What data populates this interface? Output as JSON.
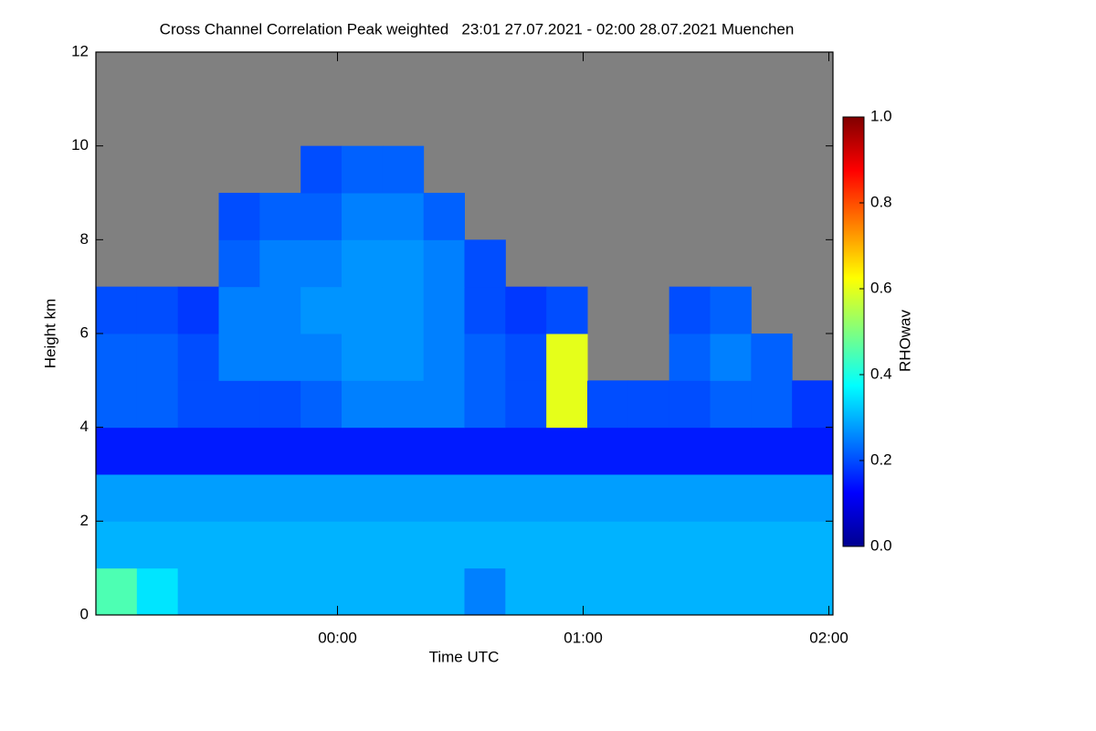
{
  "chart_data": {
    "type": "heatmap",
    "title": "Cross Channel Correlation Peak weighted   23:01 27.07.2021 - 02:00 28.07.2021 Muenchen",
    "xlabel": "Time UTC",
    "ylabel": "Height km",
    "colorbar_label": "RHOwav",
    "x": [
      "23:06",
      "23:16",
      "23:26",
      "23:36",
      "23:46",
      "23:56",
      "00:06",
      "00:16",
      "00:26",
      "00:36",
      "00:46",
      "00:56",
      "01:06",
      "01:16",
      "01:26",
      "01:36",
      "01:46",
      "01:56"
    ],
    "y": [
      0.5,
      1.5,
      2.5,
      3.5,
      4.5,
      5.5,
      6.5,
      7.5,
      8.5,
      9.5,
      10.5,
      11.5
    ],
    "z": [
      [
        0.45,
        0.35,
        0.3,
        0.3,
        0.3,
        0.3,
        0.3,
        0.3,
        0.3,
        0.25,
        0.3,
        0.3,
        0.3,
        0.3,
        0.3,
        0.3,
        0.3,
        0.3
      ],
      [
        0.3,
        0.3,
        0.3,
        0.3,
        0.3,
        0.3,
        0.3,
        0.3,
        0.3,
        0.3,
        0.3,
        0.3,
        0.3,
        0.3,
        0.3,
        0.3,
        0.3,
        0.3
      ],
      [
        0.28,
        0.28,
        0.28,
        0.28,
        0.28,
        0.28,
        0.28,
        0.28,
        0.28,
        0.28,
        0.28,
        0.28,
        0.28,
        0.28,
        0.28,
        0.28,
        0.28,
        0.28
      ],
      [
        0.15,
        0.15,
        0.15,
        0.15,
        0.15,
        0.15,
        0.15,
        0.15,
        0.15,
        0.15,
        0.15,
        0.15,
        0.15,
        0.15,
        0.15,
        0.15,
        0.15,
        0.15
      ],
      [
        0.22,
        0.22,
        0.2,
        0.2,
        0.2,
        0.22,
        0.25,
        0.25,
        0.25,
        0.22,
        0.2,
        0.6,
        0.2,
        0.2,
        0.2,
        0.22,
        0.22,
        0.18
      ],
      [
        0.22,
        0.22,
        0.2,
        0.25,
        0.25,
        0.25,
        0.27,
        0.27,
        0.25,
        0.22,
        0.2,
        0.6,
        null,
        null,
        0.22,
        0.25,
        0.22,
        null
      ],
      [
        0.2,
        0.2,
        0.18,
        0.25,
        0.25,
        0.27,
        0.27,
        0.27,
        0.25,
        0.2,
        0.18,
        0.2,
        null,
        null,
        0.2,
        0.22,
        null,
        null
      ],
      [
        null,
        null,
        null,
        0.22,
        0.25,
        0.25,
        0.27,
        0.27,
        0.25,
        0.2,
        null,
        null,
        null,
        null,
        null,
        null,
        null,
        null
      ],
      [
        null,
        null,
        null,
        0.2,
        0.22,
        0.22,
        0.25,
        0.25,
        0.22,
        null,
        null,
        null,
        null,
        null,
        null,
        null,
        null,
        null
      ],
      [
        null,
        null,
        null,
        null,
        null,
        0.2,
        0.22,
        0.22,
        null,
        null,
        null,
        null,
        null,
        null,
        null,
        null,
        null,
        null
      ],
      [
        null,
        null,
        null,
        null,
        null,
        null,
        null,
        null,
        null,
        null,
        null,
        null,
        null,
        null,
        null,
        null,
        null,
        null
      ],
      [
        null,
        null,
        null,
        null,
        null,
        null,
        null,
        null,
        null,
        null,
        null,
        null,
        null,
        null,
        null,
        null,
        null,
        null
      ]
    ],
    "xlim": [
      "23:01",
      "02:01"
    ],
    "xticks": [
      "00:00",
      "01:00",
      "02:00"
    ],
    "ylim": [
      0,
      12
    ],
    "yticks": [
      0,
      2,
      4,
      6,
      8,
      10,
      12
    ],
    "clim": [
      0,
      1
    ],
    "cticks": [
      {
        "value": 0,
        "label": "0.0"
      },
      0.2,
      0.4,
      0.6,
      0.8,
      {
        "value": 1,
        "label": "1.0"
      }
    ],
    "colormap": "jet",
    "missing_color": "#808080"
  }
}
